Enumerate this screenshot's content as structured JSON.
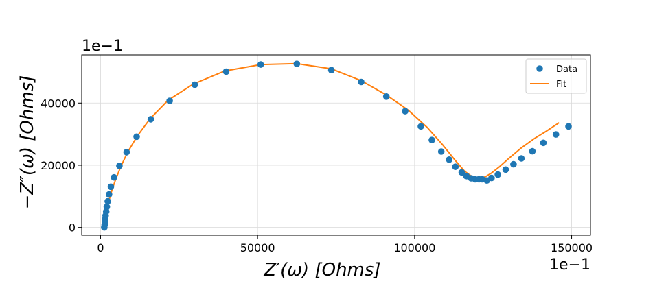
{
  "chart_data": {
    "type": "scatter",
    "xlabel": "Z′(ω) [Ohms]",
    "ylabel": "−Z″(ω) [Ohms]",
    "x_offset_label": "1e−1",
    "y_offset_label": "1e−1",
    "xlim": [
      -6000,
      156000
    ],
    "ylim": [
      -2500,
      55500
    ],
    "x_ticks": [
      0,
      50000,
      100000,
      150000
    ],
    "x_tick_labels": [
      "0",
      "50000",
      "100000",
      "150000"
    ],
    "y_ticks": [
      0,
      20000,
      40000
    ],
    "y_tick_labels": [
      "0",
      "20000",
      "40000"
    ],
    "grid": true,
    "legend_position": "top-right",
    "colors": {
      "data": "#1f77b4",
      "fit": "#ff7f0e"
    },
    "series": [
      {
        "name": "Data",
        "kind": "markers",
        "x": [
          1200,
          1300,
          1400,
          1500,
          1600,
          1800,
          2000,
          2300,
          2700,
          3300,
          4300,
          6000,
          8300,
          11500,
          16000,
          22000,
          30000,
          40000,
          51000,
          62500,
          73500,
          83000,
          91000,
          97000,
          102000,
          105500,
          108500,
          111000,
          113000,
          115000,
          116500,
          118000,
          119300,
          120500,
          121500,
          123000,
          124500,
          126500,
          129000,
          131500,
          134000,
          137500,
          141000,
          145000,
          149000
        ],
        "y": [
          0,
          800,
          1700,
          2700,
          3800,
          5100,
          6600,
          8400,
          10600,
          13100,
          16100,
          19800,
          24200,
          29200,
          34800,
          40700,
          45900,
          50100,
          52400,
          52600,
          50600,
          46800,
          42100,
          37400,
          32500,
          28100,
          24400,
          21800,
          19500,
          17700,
          16500,
          15800,
          15500,
          15500,
          15500,
          15100,
          15900,
          17000,
          18600,
          20300,
          22200,
          24500,
          27200,
          29900,
          32500
        ]
      },
      {
        "name": "Fit",
        "kind": "line",
        "x": [
          1100,
          1200,
          1400,
          1600,
          1900,
          2300,
          2900,
          3700,
          4900,
          6500,
          8700,
          11700,
          15800,
          21500,
          29500,
          39500,
          51000,
          62500,
          73500,
          83000,
          91000,
          98000,
          104000,
          109000,
          113000,
          116000,
          118500,
          120500,
          122500,
          124500,
          127000,
          130000,
          134000,
          138000,
          142000,
          146000
        ],
        "y": [
          0,
          900,
          2000,
          3400,
          5000,
          7000,
          9400,
          12300,
          15700,
          19700,
          24300,
          29400,
          35000,
          40900,
          46100,
          50300,
          52400,
          52700,
          51000,
          47200,
          42600,
          37700,
          32200,
          26500,
          21500,
          18000,
          16200,
          15800,
          16300,
          17500,
          19500,
          22200,
          25600,
          28500,
          31000,
          33700
        ]
      }
    ]
  }
}
